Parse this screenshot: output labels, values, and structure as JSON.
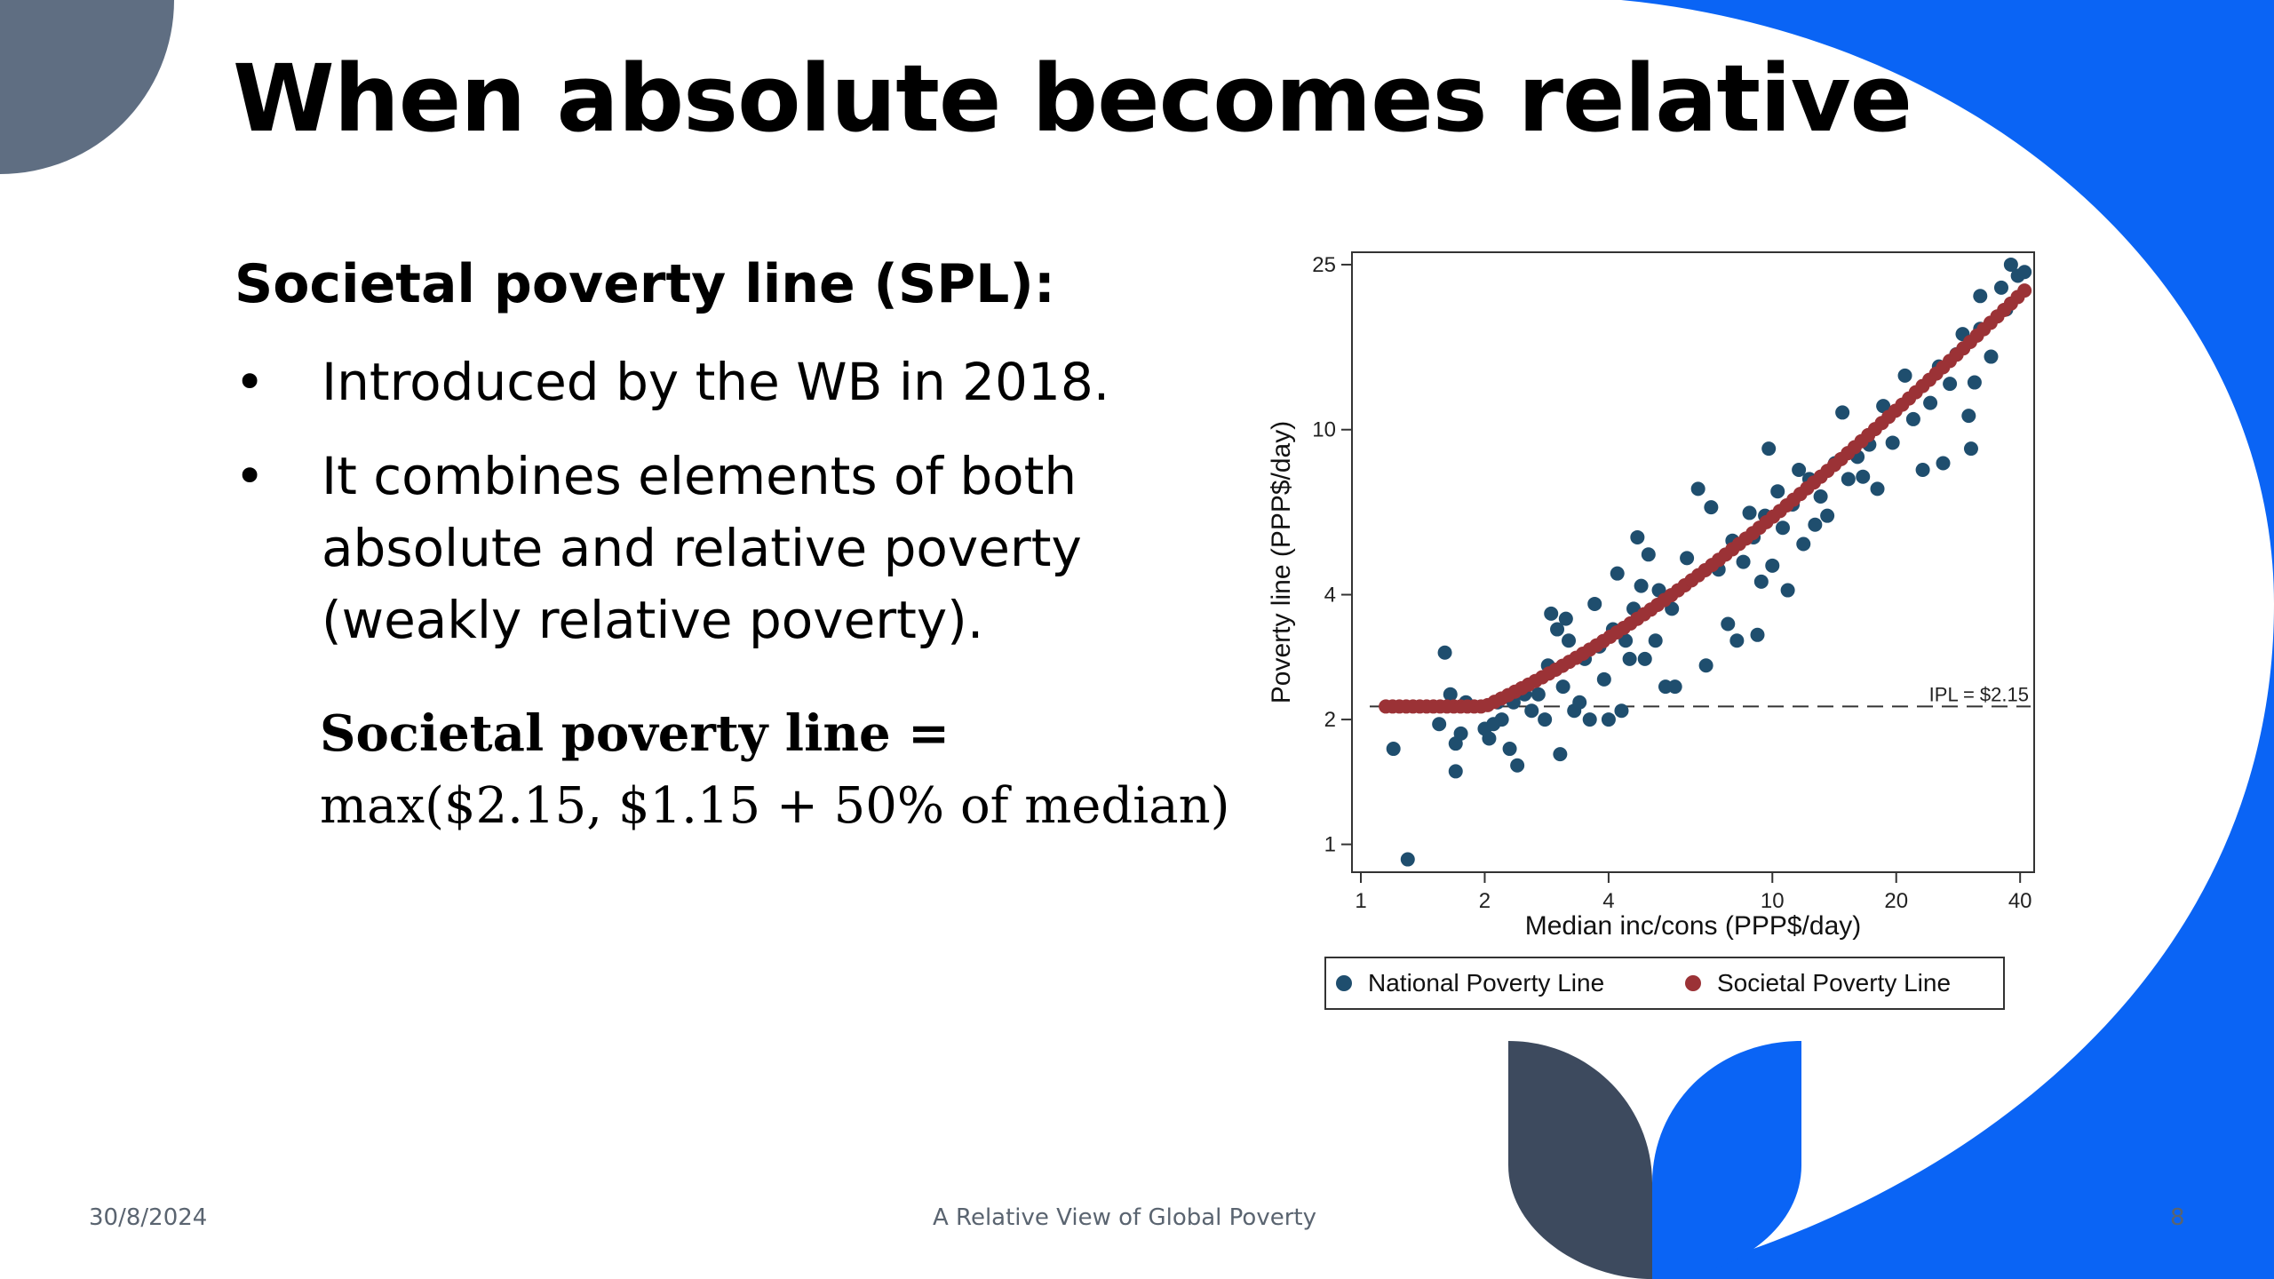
{
  "slide": {
    "title": "When absolute becomes relative",
    "heading": "Societal poverty line (SPL):",
    "bullets": [
      "Introduced by the WB in 2018.",
      "It combines elements of both absolute and relative poverty (weakly relative poverty)."
    ],
    "bullet_symbol": "•",
    "formula_lhs": "Societal poverty line =",
    "formula_rhs": "max($2.15, $1.15 + 50% of median)",
    "footer_date": "30/8/2024",
    "footer_title": "A Relative View of Global Poverty",
    "page_number": "8"
  },
  "colors": {
    "accent_blue": "#0a64f5",
    "dark_slate": "#3d4a5e",
    "slate_gray": "#5f6e82",
    "national_marker": "#1f4e6e",
    "societal_marker": "#9b3236"
  },
  "chart_data": {
    "type": "scatter",
    "title": "",
    "xlabel": "Median inc/cons (PPP$/day)",
    "ylabel": "Poverty line (PPP$/day)",
    "x_scale": "log",
    "y_scale": "log",
    "xlim": [
      1,
      42
    ],
    "ylim": [
      0.9,
      26
    ],
    "x_ticks": [
      1,
      2,
      4,
      10,
      20,
      40
    ],
    "y_ticks": [
      1,
      2,
      4,
      10,
      25
    ],
    "grid": false,
    "legend_position": "bottom",
    "reference_line": {
      "y": 2.15,
      "label": "IPL = $2.15",
      "style": "dashed"
    },
    "series": [
      {
        "name": "National Poverty Line",
        "color": "#1f4e6e",
        "points": [
          [
            1.2,
            1.7
          ],
          [
            1.3,
            0.92
          ],
          [
            1.55,
            1.95
          ],
          [
            1.6,
            2.9
          ],
          [
            1.65,
            2.3
          ],
          [
            1.7,
            1.75
          ],
          [
            1.7,
            1.5
          ],
          [
            1.75,
            1.85
          ],
          [
            1.8,
            2.2
          ],
          [
            2.0,
            1.9
          ],
          [
            2.05,
            1.8
          ],
          [
            2.1,
            1.95
          ],
          [
            2.15,
            2.2
          ],
          [
            2.2,
            2.0
          ],
          [
            2.3,
            1.7
          ],
          [
            2.35,
            2.2
          ],
          [
            2.4,
            1.55
          ],
          [
            2.5,
            2.3
          ],
          [
            2.6,
            2.1
          ],
          [
            2.7,
            2.3
          ],
          [
            2.8,
            2.0
          ],
          [
            2.85,
            2.7
          ],
          [
            2.9,
            3.6
          ],
          [
            3.0,
            3.3
          ],
          [
            3.05,
            1.65
          ],
          [
            3.1,
            2.4
          ],
          [
            3.15,
            3.5
          ],
          [
            3.2,
            3.1
          ],
          [
            3.3,
            2.1
          ],
          [
            3.4,
            2.2
          ],
          [
            3.5,
            2.8
          ],
          [
            3.6,
            2.0
          ],
          [
            3.7,
            3.8
          ],
          [
            3.8,
            3.0
          ],
          [
            3.9,
            2.5
          ],
          [
            4.0,
            2.0
          ],
          [
            4.1,
            3.3
          ],
          [
            4.2,
            4.5
          ],
          [
            4.3,
            2.1
          ],
          [
            4.4,
            3.1
          ],
          [
            4.5,
            2.8
          ],
          [
            4.6,
            3.7
          ],
          [
            4.7,
            5.5
          ],
          [
            4.8,
            4.2
          ],
          [
            4.9,
            2.8
          ],
          [
            5.0,
            5.0
          ],
          [
            5.2,
            3.1
          ],
          [
            5.3,
            4.1
          ],
          [
            5.5,
            2.4
          ],
          [
            5.7,
            3.7
          ],
          [
            5.8,
            2.4
          ],
          [
            6.2,
            4.9
          ],
          [
            6.6,
            7.2
          ],
          [
            6.9,
            2.7
          ],
          [
            7.1,
            6.5
          ],
          [
            7.4,
            4.6
          ],
          [
            7.8,
            3.4
          ],
          [
            8.0,
            5.4
          ],
          [
            8.2,
            3.1
          ],
          [
            8.5,
            4.8
          ],
          [
            8.8,
            6.3
          ],
          [
            9.0,
            5.5
          ],
          [
            9.2,
            3.2
          ],
          [
            9.4,
            4.3
          ],
          [
            9.6,
            6.2
          ],
          [
            9.8,
            9.0
          ],
          [
            10.0,
            4.7
          ],
          [
            10.3,
            7.1
          ],
          [
            10.6,
            5.8
          ],
          [
            10.9,
            4.1
          ],
          [
            11.2,
            6.6
          ],
          [
            11.6,
            8.0
          ],
          [
            11.9,
            5.3
          ],
          [
            12.3,
            7.6
          ],
          [
            12.7,
            5.9
          ],
          [
            13.1,
            6.9
          ],
          [
            13.6,
            6.2
          ],
          [
            14.2,
            8.3
          ],
          [
            14.8,
            11.0
          ],
          [
            15.3,
            7.6
          ],
          [
            16.1,
            8.6
          ],
          [
            16.6,
            7.7
          ],
          [
            17.2,
            9.2
          ],
          [
            18.0,
            7.2
          ],
          [
            18.6,
            11.4
          ],
          [
            19.6,
            9.3
          ],
          [
            21.0,
            13.5
          ],
          [
            22.0,
            10.6
          ],
          [
            23.2,
            8.0
          ],
          [
            24.2,
            11.6
          ],
          [
            25.4,
            14.2
          ],
          [
            26.0,
            8.3
          ],
          [
            27.0,
            12.9
          ],
          [
            28.0,
            15.2
          ],
          [
            29.0,
            17.0
          ],
          [
            30.0,
            10.8
          ],
          [
            30.4,
            9.0
          ],
          [
            31.0,
            13.0
          ],
          [
            32.0,
            17.5
          ],
          [
            32.0,
            21.0
          ],
          [
            34.0,
            15.0
          ],
          [
            36.0,
            22.0
          ],
          [
            37.0,
            19.5
          ],
          [
            38.0,
            25.0
          ],
          [
            39.5,
            23.5
          ],
          [
            41.0,
            24.0
          ]
        ]
      },
      {
        "name": "Societal Poverty Line",
        "color": "#9b3236",
        "function": "max(2.15, 1.15 + 0.5*x)",
        "x_range": [
          1.15,
          41
        ]
      }
    ]
  }
}
